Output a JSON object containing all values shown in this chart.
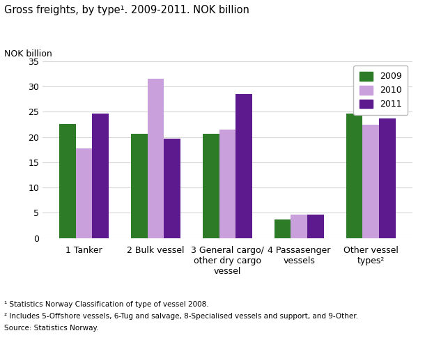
{
  "title": "Gross freights, by type¹. 2009-2011. NOK billion",
  "ylabel": "NOK billion",
  "categories": [
    "1 Tanker",
    "2 Bulk vessel",
    "3 General cargo/\nother dry cargo\nvessel",
    "4 Passasenger\nvessels",
    "Other vessel\ntypes²"
  ],
  "series": {
    "2009": [
      22.5,
      20.6,
      20.6,
      3.7,
      24.6
    ],
    "2010": [
      17.7,
      31.5,
      21.5,
      4.7,
      22.4
    ],
    "2011": [
      24.6,
      19.6,
      28.5,
      4.7,
      23.6
    ]
  },
  "colors": {
    "2009": "#2d7a27",
    "2010": "#c9a0dc",
    "2011": "#5c1a8e"
  },
  "ylim": [
    0,
    35
  ],
  "yticks": [
    0,
    5,
    10,
    15,
    20,
    25,
    30,
    35
  ],
  "footnote1": "¹ Statistics Norway Classification of type of vessel 2008.",
  "footnote2": "² Includes 5-Offshore vessels, 6-Tug and salvage, 8-Specialised vessels and support, and 9-Other.",
  "footnote3": "Source: Statistics Norway.",
  "background_color": "#ffffff",
  "grid_color": "#d8d8d8"
}
